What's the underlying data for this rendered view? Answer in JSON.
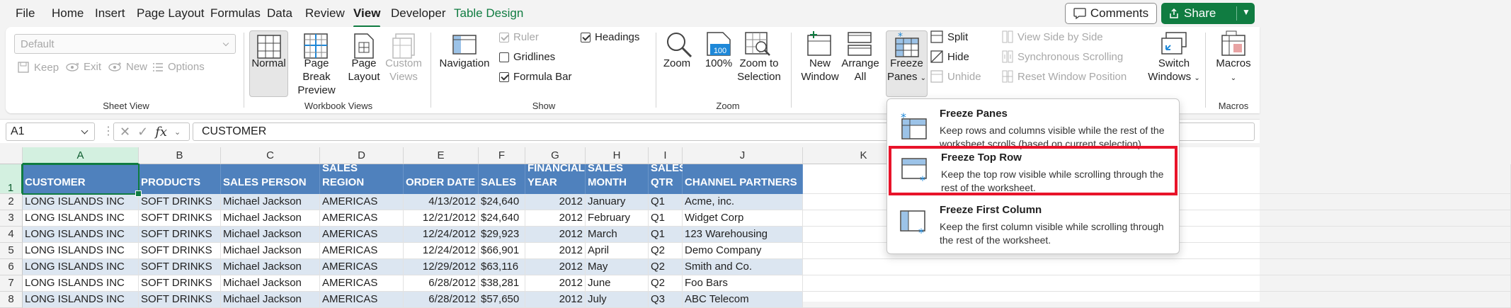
{
  "menu": [
    "File",
    "Home",
    "Insert",
    "Page Layout",
    "Formulas",
    "Data",
    "Review",
    "View",
    "Developer",
    "Table Design"
  ],
  "buttons": {
    "comments": "Comments",
    "share": "Share"
  },
  "ribbon": {
    "sheet_view": {
      "label": "Sheet View",
      "style_value": "Default",
      "keep": "Keep",
      "exit": "Exit",
      "new": "New",
      "options": "Options"
    },
    "workbook_views": {
      "label": "Workbook Views",
      "normal": "Normal",
      "page_break_1": "Page Break",
      "page_break_2": "Preview",
      "page_layout_1": "Page",
      "page_layout_2": "Layout",
      "custom_1": "Custom",
      "custom_2": "Views"
    },
    "show": {
      "label": "Show",
      "navigation": "Navigation",
      "ruler": "Ruler",
      "gridlines": "Gridlines",
      "formula_bar": "Formula Bar",
      "headings": "Headings"
    },
    "zoom": {
      "label": "Zoom",
      "zoom": "Zoom",
      "hundred": "100%",
      "zoom_sel_1": "Zoom to",
      "zoom_sel_2": "Selection"
    },
    "window": {
      "new_window_1": "New",
      "new_window_2": "Window",
      "arrange_1": "Arrange",
      "arrange_2": "All",
      "freeze_1": "Freeze",
      "freeze_2": "Panes",
      "split": "Split",
      "hide": "Hide",
      "unhide": "Unhide",
      "side_by_side": "View Side by Side",
      "sync_scroll": "Synchronous Scrolling",
      "reset_pos": "Reset Window Position",
      "switch_1": "Switch",
      "switch_2": "Windows"
    },
    "macros": {
      "label": "Macros",
      "macros": "Macros"
    }
  },
  "formula_bar": {
    "name_box": "A1",
    "formula": "CUSTOMER"
  },
  "columns": [
    "A",
    "B",
    "C",
    "D",
    "E",
    "F",
    "G",
    "H",
    "I",
    "J",
    "K"
  ],
  "rows": [
    "1",
    "2",
    "3",
    "4",
    "5",
    "6",
    "7",
    "8"
  ],
  "table": {
    "headers": [
      "CUSTOMER",
      "PRODUCTS",
      "SALES PERSON",
      "SALES REGION",
      "ORDER DATE",
      "SALES",
      "FINANCIAL YEAR",
      "SALES MONTH",
      "SALES QTR",
      "CHANNEL PARTNERS"
    ],
    "data": [
      [
        "LONG ISLANDS INC",
        "SOFT DRINKS",
        "Michael Jackson",
        "AMERICAS",
        "4/13/2012",
        "$24,640",
        "2012",
        "January",
        "Q1",
        "Acme, inc."
      ],
      [
        "LONG ISLANDS INC",
        "SOFT DRINKS",
        "Michael Jackson",
        "AMERICAS",
        "12/21/2012",
        "$24,640",
        "2012",
        "February",
        "Q1",
        "Widget Corp"
      ],
      [
        "LONG ISLANDS INC",
        "SOFT DRINKS",
        "Michael Jackson",
        "AMERICAS",
        "12/24/2012",
        "$29,923",
        "2012",
        "March",
        "Q1",
        "123 Warehousing"
      ],
      [
        "LONG ISLANDS INC",
        "SOFT DRINKS",
        "Michael Jackson",
        "AMERICAS",
        "12/24/2012",
        "$66,901",
        "2012",
        "April",
        "Q2",
        "Demo Company"
      ],
      [
        "LONG ISLANDS INC",
        "SOFT DRINKS",
        "Michael Jackson",
        "AMERICAS",
        "12/29/2012",
        "$63,116",
        "2012",
        "May",
        "Q2",
        "Smith and Co."
      ],
      [
        "LONG ISLANDS INC",
        "SOFT DRINKS",
        "Michael Jackson",
        "AMERICAS",
        "6/28/2012",
        "$38,281",
        "2012",
        "June",
        "Q2",
        "Foo Bars"
      ],
      [
        "LONG ISLANDS INC",
        "SOFT DRINKS",
        "Michael Jackson",
        "AMERICAS",
        "6/28/2012",
        "$57,650",
        "2012",
        "July",
        "Q3",
        "ABC Telecom"
      ]
    ]
  },
  "dropdown": {
    "items": [
      {
        "title": "Freeze Panes",
        "desc": "Keep rows and columns visible while the rest of the worksheet scrolls (based on current selection)."
      },
      {
        "title": "Freeze Top Row",
        "desc": "Keep the top row visible while scrolling through the rest of the worksheet."
      },
      {
        "title": "Freeze First Column",
        "desc": "Keep the first column visible while scrolling through the rest of the worksheet."
      }
    ]
  },
  "colors": {
    "accent": "#107c41",
    "table_header": "#4f81bd",
    "band": "#dce6f1",
    "highlight": "#e8132a",
    "icon_blue": "#1e88d8"
  }
}
